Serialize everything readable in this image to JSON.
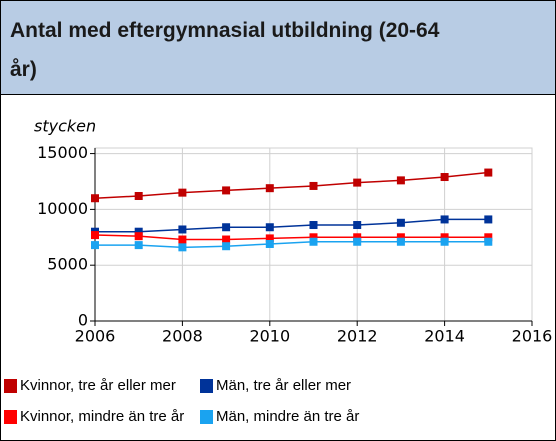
{
  "chart_data": {
    "type": "line",
    "title": "Antal med eftergymnasial utbildning (20-64 år)",
    "y_label": "stycken",
    "x": [
      2006,
      2007,
      2008,
      2009,
      2010,
      2011,
      2012,
      2013,
      2014,
      2015
    ],
    "series": [
      {
        "name": "Kvinnor, tre år eller mer",
        "color": "#c00000",
        "values": [
          11000,
          11200,
          11500,
          11700,
          11900,
          12100,
          12400,
          12600,
          12900,
          13300
        ]
      },
      {
        "name": "Män, tre år eller mer",
        "color": "#003399",
        "values": [
          8000,
          8000,
          8200,
          8400,
          8400,
          8600,
          8600,
          8800,
          9100,
          9100
        ]
      },
      {
        "name": "Kvinnor, mindre än tre år",
        "color": "#ff0000",
        "values": [
          7700,
          7600,
          7300,
          7300,
          7400,
          7500,
          7500,
          7500,
          7500,
          7500
        ]
      },
      {
        "name": "Män, mindre än tre år",
        "color": "#1aa3f0",
        "values": [
          6800,
          6800,
          6600,
          6700,
          6900,
          7100,
          7100,
          7100,
          7100,
          7100
        ]
      }
    ],
    "xlim": [
      2006,
      2016
    ],
    "xticks": [
      2006,
      2008,
      2010,
      2012,
      2014,
      2016
    ],
    "ylim": [
      0,
      15500
    ],
    "yticks": [
      0,
      5000,
      10000,
      15000
    ],
    "grid": true
  }
}
